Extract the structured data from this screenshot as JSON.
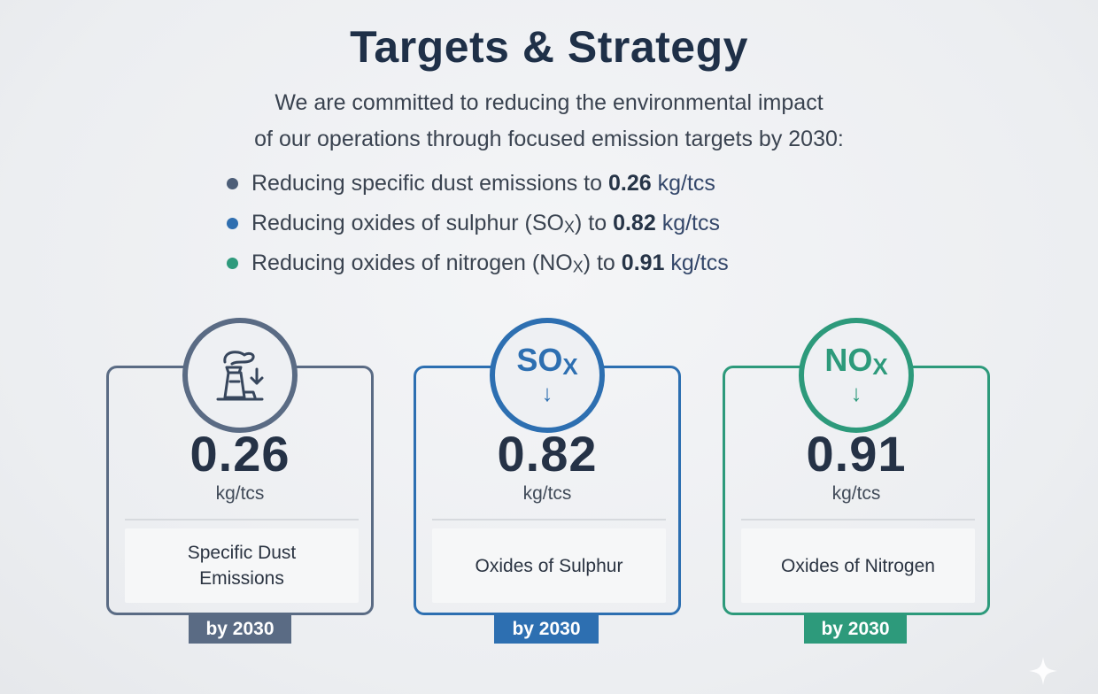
{
  "title": "Targets & Strategy",
  "intro": {
    "line1": "We are committed to reducing the environmental impact",
    "line2": "of our operations through focused emission targets by 2030:"
  },
  "bullets": [
    {
      "prefix": "Reducing specific dust emissions to",
      "gas": "",
      "gas_sub": "",
      "mid": "",
      "value": "0.26",
      "unit": "kg/tcs",
      "dot_color": "#4d5e78"
    },
    {
      "prefix": "Reducing oxides of sulphur (",
      "gas": "SO",
      "gas_sub": "X",
      "mid": ") to",
      "value": "0.82",
      "unit": "kg/tcs",
      "dot_color": "#2f6fb0"
    },
    {
      "prefix": "Reducing oxides of nitrogen (",
      "gas": "NO",
      "gas_sub": "X",
      "mid": ") to",
      "value": "0.91",
      "unit": "kg/tcs",
      "dot_color": "#2e9a7c"
    }
  ],
  "cards": [
    {
      "icon": "factory-dust-down-icon",
      "gas": "",
      "gas_sub": "",
      "value": "0.26",
      "unit": "kg/tcs",
      "label": "Specific Dust Emissions",
      "badge": "by 2030",
      "color": "#5a6b84"
    },
    {
      "icon": "sox-down-icon",
      "gas": "SO",
      "gas_sub": "X",
      "value": "0.82",
      "unit": "kg/tcs",
      "label": "Oxides of Sulphur",
      "badge": "by 2030",
      "color": "#2d6fb1"
    },
    {
      "icon": "nox-down-icon",
      "gas": "NO",
      "gas_sub": "X",
      "value": "0.91",
      "unit": "kg/tcs",
      "label": "Oxides of Nitrogen",
      "badge": "by 2030",
      "color": "#2d9a7b"
    }
  ],
  "arrow_glyph": "↓"
}
